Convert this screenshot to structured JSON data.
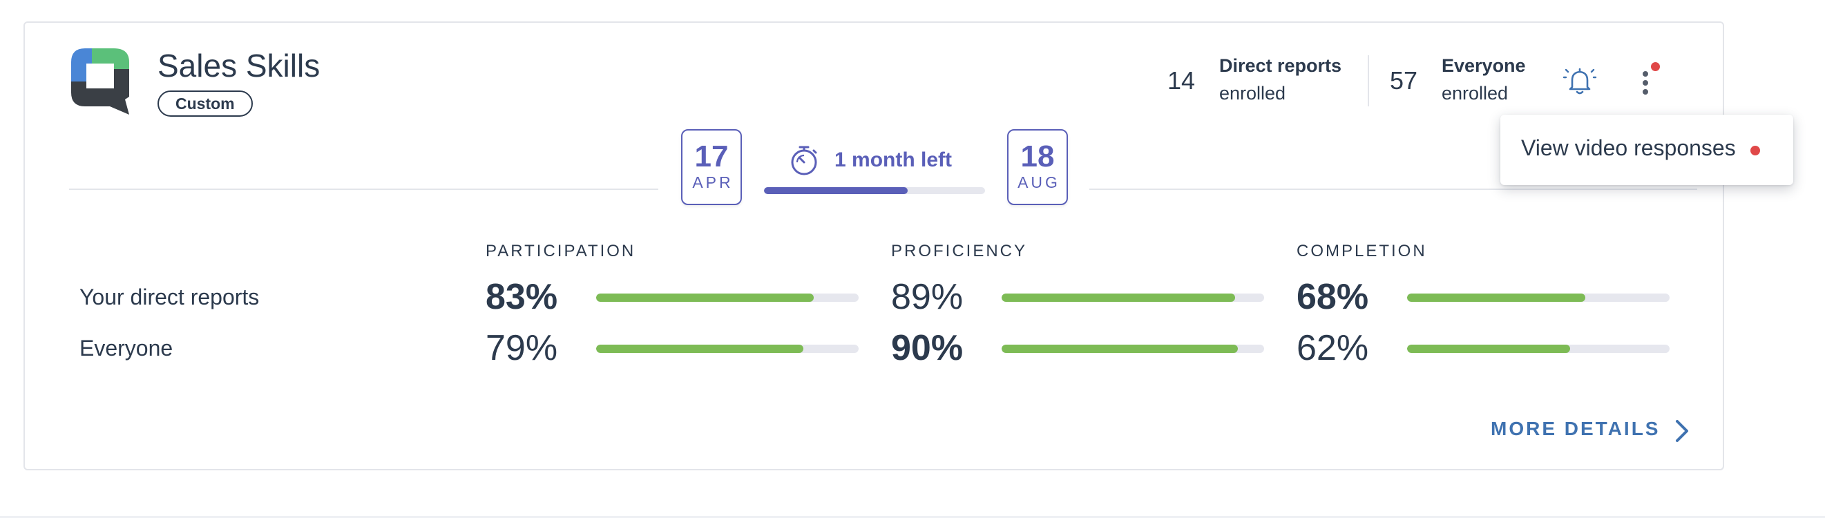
{
  "course": {
    "title": "Sales Skills",
    "badge": "Custom"
  },
  "enrollment": {
    "direct": {
      "count": "14",
      "title": "Direct reports",
      "sub": "enrolled"
    },
    "everyone": {
      "count": "57",
      "title": "Everyone",
      "sub": "enrolled"
    }
  },
  "icons": {
    "logo": "logo-icon",
    "bell": "bell-icon",
    "menu": "kebab-menu-icon",
    "timer": "stopwatch-icon",
    "chevron": "chevron-right-icon"
  },
  "timeline": {
    "start": {
      "day": "17",
      "month": "APR"
    },
    "end": {
      "day": "18",
      "month": "AUG"
    },
    "remaining": "1 month left",
    "progress": 0.65
  },
  "metrics": {
    "columns": [
      "PARTICIPATION",
      "PROFICIENCY",
      "COMPLETION"
    ],
    "rows": [
      {
        "label": "Your direct reports",
        "values": [
          {
            "text": "83%",
            "value": 0.83,
            "bold": true
          },
          {
            "text": "89%",
            "value": 0.89,
            "bold": false
          },
          {
            "text": "68%",
            "value": 0.68,
            "bold": true
          }
        ]
      },
      {
        "label": "Everyone",
        "values": [
          {
            "text": "79%",
            "value": 0.79,
            "bold": false
          },
          {
            "text": "90%",
            "value": 0.9,
            "bold": true
          },
          {
            "text": "62%",
            "value": 0.62,
            "bold": false
          }
        ]
      }
    ]
  },
  "more_details": "MORE DETAILS",
  "dropdown": {
    "item": "View video responses"
  },
  "colors": {
    "accent": "#5a5fb8",
    "bar_fill": "#7dbb55",
    "bar_track": "#e6e7ee",
    "link": "#3f72b0",
    "notification": "#e04848"
  }
}
